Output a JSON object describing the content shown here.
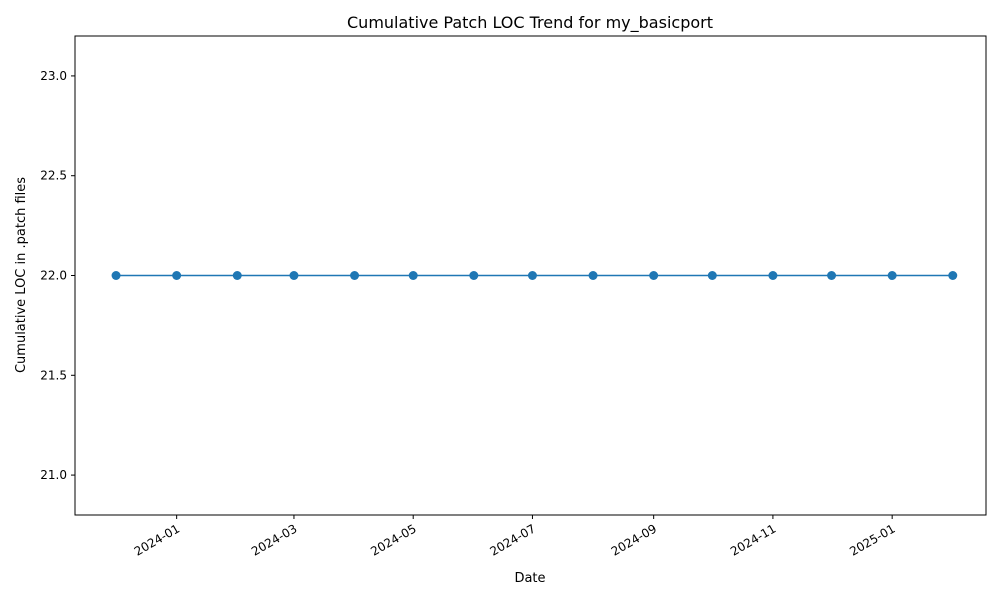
{
  "chart_data": {
    "type": "line",
    "title": "Cumulative Patch LOC Trend for my_basicport",
    "xlabel": "Date",
    "ylabel": "Cumulative LOC in .patch files",
    "ylim": [
      20.8,
      23.2
    ],
    "xlim": [
      "2023-11-10",
      "2025-02-18"
    ],
    "y_ticks": [
      21.0,
      21.5,
      22.0,
      22.5,
      23.0
    ],
    "x_ticks": [
      "2024-01-01",
      "2024-03-01",
      "2024-05-01",
      "2024-07-01",
      "2024-09-01",
      "2024-11-01",
      "2025-01-01"
    ],
    "x_tick_labels": [
      "2024-01",
      "2024-03",
      "2024-05",
      "2024-07",
      "2024-09",
      "2024-11",
      "2025-01"
    ],
    "grid": false,
    "series": [
      {
        "color": "#1f77b4",
        "marker": "circle",
        "x": [
          "2023-12-01",
          "2024-01-01",
          "2024-02-01",
          "2024-03-01",
          "2024-04-01",
          "2024-05-01",
          "2024-06-01",
          "2024-07-01",
          "2024-08-01",
          "2024-09-01",
          "2024-10-01",
          "2024-11-01",
          "2024-12-01",
          "2025-01-01",
          "2025-02-01"
        ],
        "values": [
          22,
          22,
          22,
          22,
          22,
          22,
          22,
          22,
          22,
          22,
          22,
          22,
          22,
          22,
          22
        ]
      }
    ]
  }
}
